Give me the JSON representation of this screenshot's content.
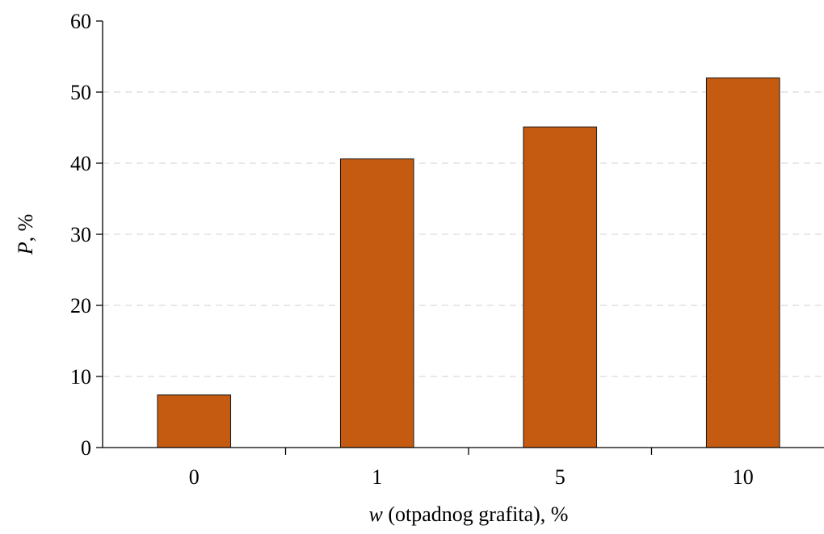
{
  "chart_data": {
    "type": "bar",
    "categories": [
      "0",
      "1",
      "5",
      "10"
    ],
    "values": [
      7.4,
      40.6,
      45.1,
      52.0
    ],
    "title": "",
    "xlabel": {
      "italic": "w",
      "rest": " (otpadnog grafita), %"
    },
    "ylabel": {
      "italic": "P",
      "rest": ", %"
    },
    "ylim": [
      0,
      60
    ],
    "yticks": [
      "0",
      "10",
      "20",
      "30",
      "40",
      "50",
      "60"
    ],
    "grid": "horizontal dashed",
    "legend": "none",
    "colors": {
      "bar": "#C55A11",
      "bar_outline": "#1a1a1a",
      "grid": "#d9d9d9",
      "axis": "#000000"
    }
  }
}
